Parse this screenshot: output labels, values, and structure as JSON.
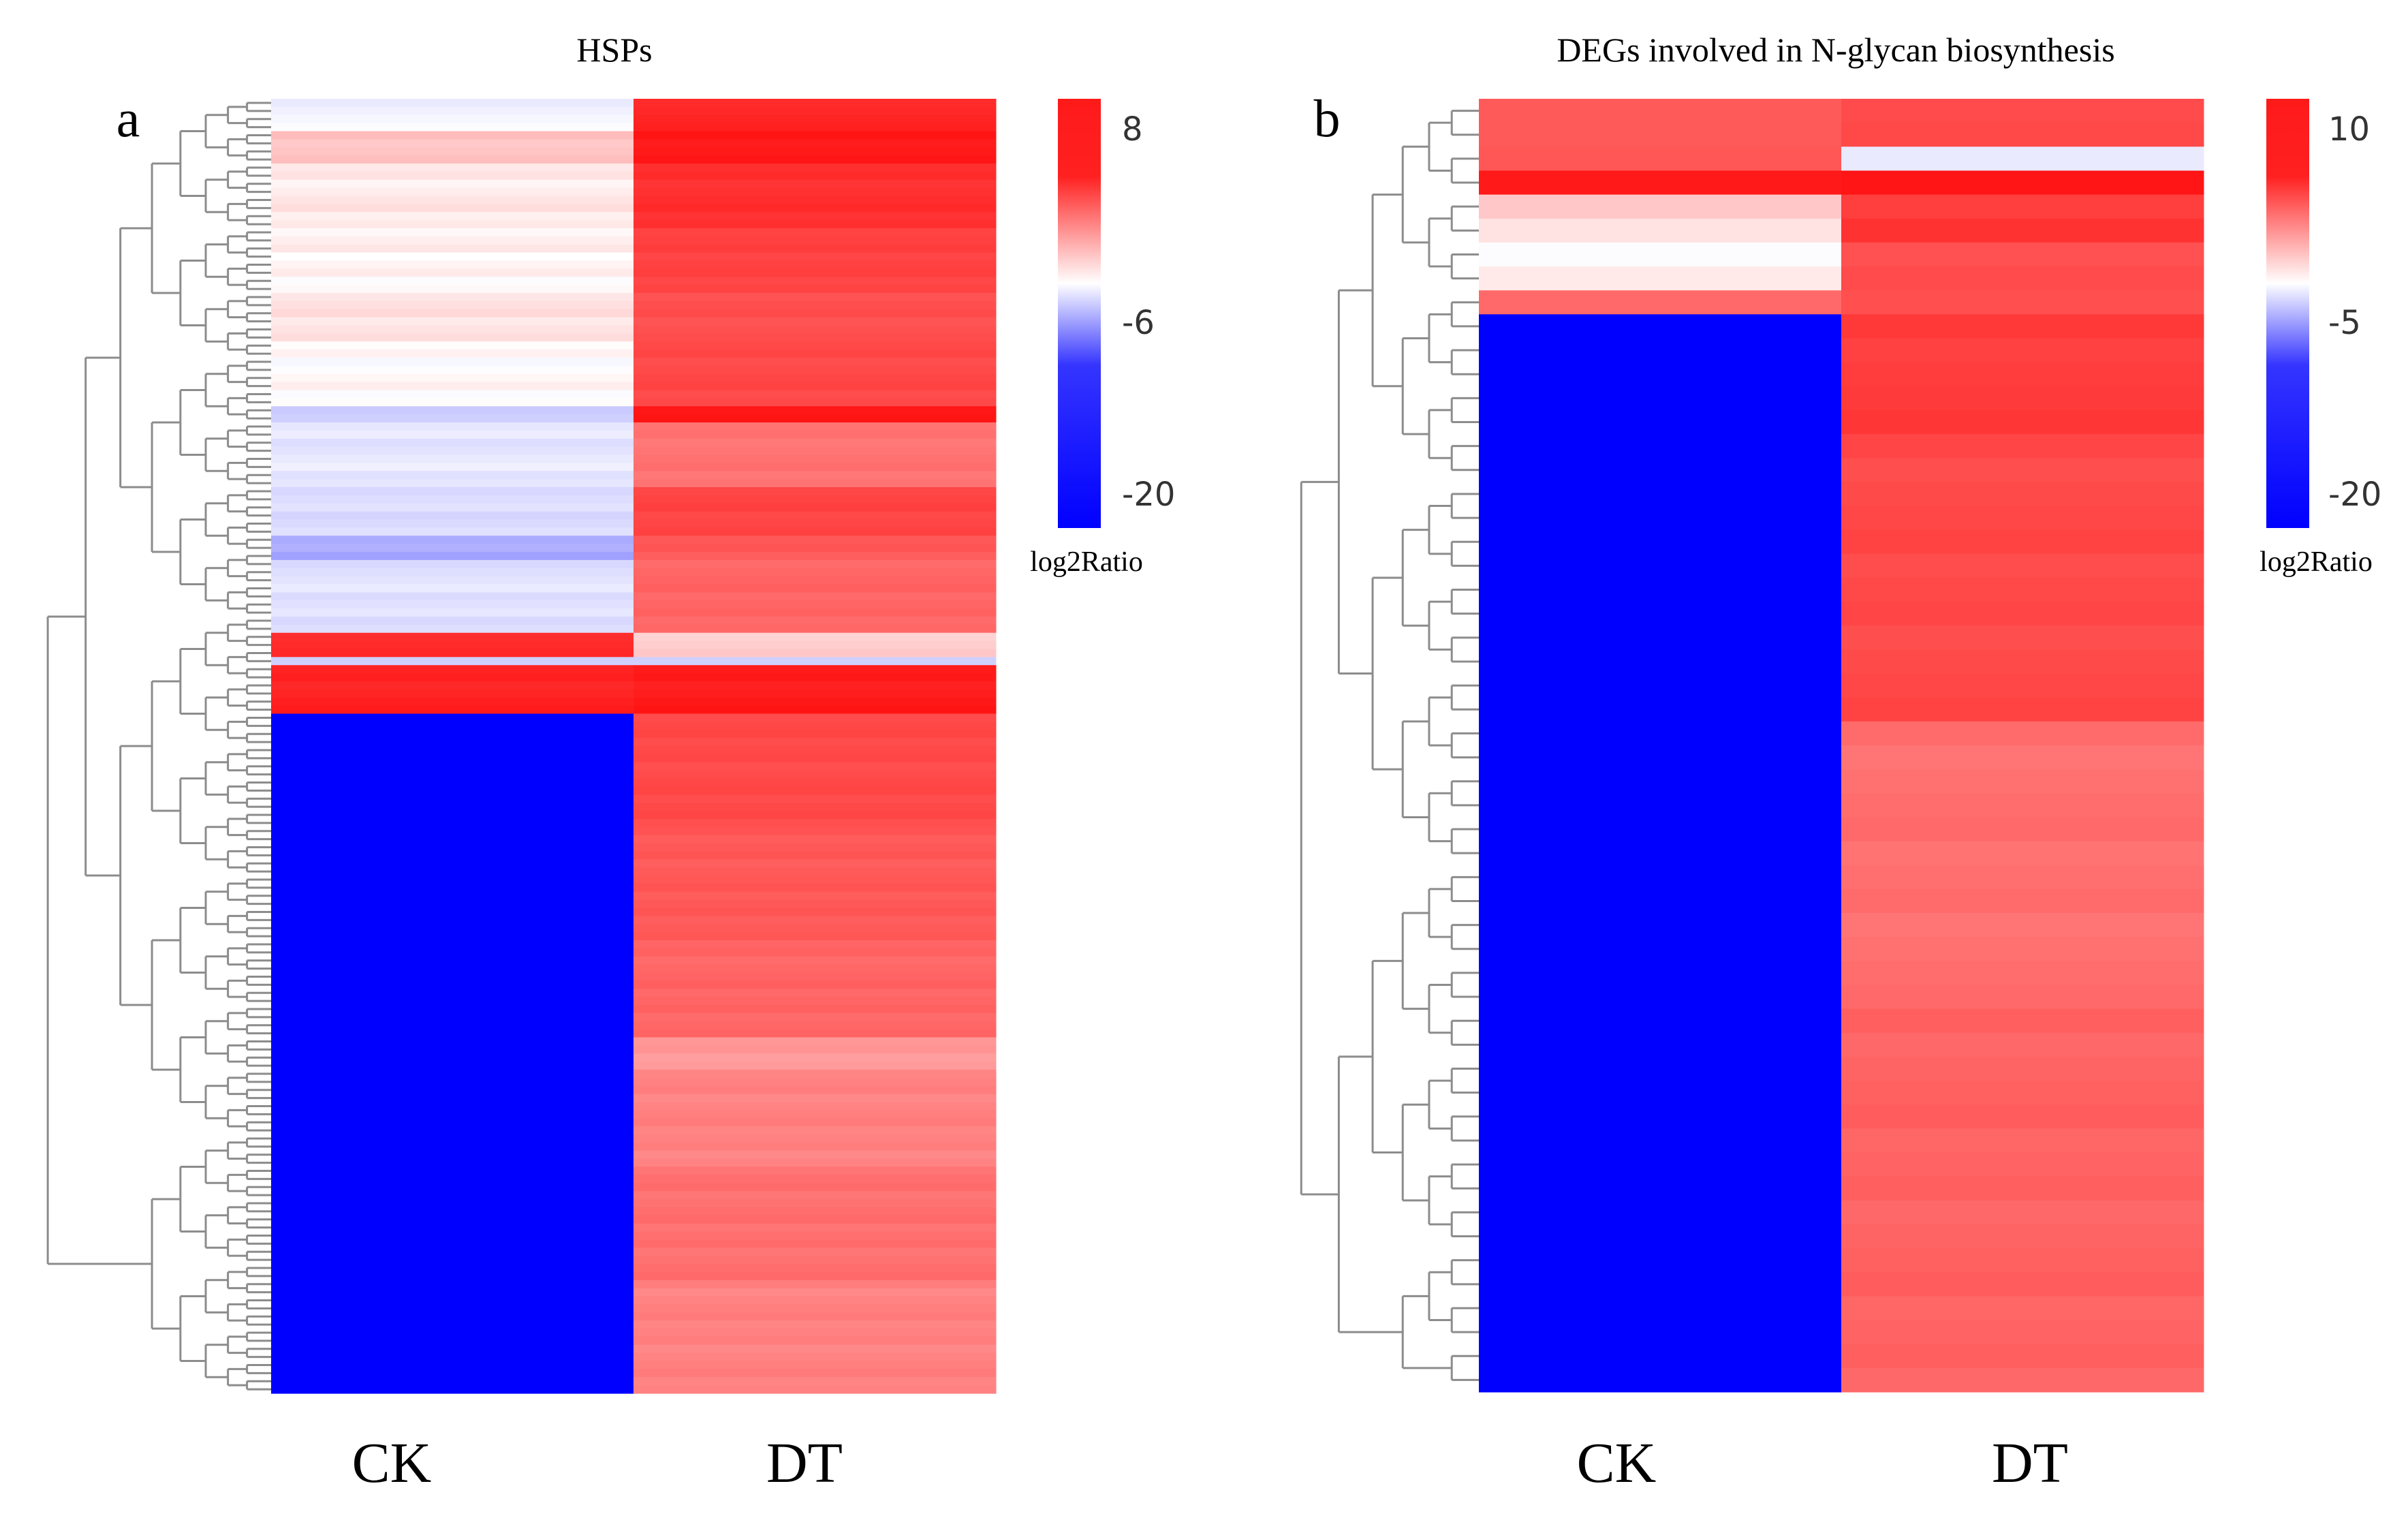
{
  "chart_data": [
    {
      "type": "heatmap",
      "panel_letter": "a",
      "title": "HSPs",
      "columns": [
        "CK",
        "DT"
      ],
      "colorbar": {
        "title": "log2Ratio",
        "ticks": [
          8,
          -6,
          -20
        ],
        "range": [
          -20,
          8
        ]
      },
      "row_blocks": [
        {
          "rows": 4,
          "ck": -4.5,
          "dt": 6.8
        },
        {
          "rows": 4,
          "ck": -2.0,
          "dt": 7.8
        },
        {
          "rows": 8,
          "ck": -3.5,
          "dt": 6.2
        },
        {
          "rows": 8,
          "ck": -3.8,
          "dt": 5.0
        },
        {
          "rows": 6,
          "ck": -3.2,
          "dt": 4.2
        },
        {
          "rows": 8,
          "ck": -4.0,
          "dt": 4.6
        },
        {
          "rows": 2,
          "ck": -6.0,
          "dt": 8.0
        },
        {
          "rows": 8,
          "ck": -5.0,
          "dt": 2.0
        },
        {
          "rows": 6,
          "ck": -5.5,
          "dt": 4.8
        },
        {
          "rows": 3,
          "ck": -7.5,
          "dt": 3.5
        },
        {
          "rows": 9,
          "ck": -5.2,
          "dt": 2.8
        },
        {
          "rows": 3,
          "ck": 6.5,
          "dt": -2.5
        },
        {
          "rows": 1,
          "ck": -6.0,
          "dt": -6.0
        },
        {
          "rows": 4,
          "ck": 7.0,
          "dt": 7.5
        },
        {
          "rows": 2,
          "ck": 7.5,
          "dt": 8.0
        },
        {
          "rows": 14,
          "ck": -20,
          "dt": 4.5
        },
        {
          "rows": 14,
          "ck": -20,
          "dt": 3.6
        },
        {
          "rows": 12,
          "ck": -20,
          "dt": 2.8
        },
        {
          "rows": 4,
          "ck": -20,
          "dt": 0.0
        },
        {
          "rows": 12,
          "ck": -20,
          "dt": 1.2
        },
        {
          "rows": 14,
          "ck": -20,
          "dt": 2.2
        },
        {
          "rows": 14,
          "ck": -20,
          "dt": 1.2
        }
      ]
    },
    {
      "type": "heatmap",
      "panel_letter": "b",
      "title": "DEGs involved in N-glycan biosynthesis",
      "columns": [
        "CK",
        "DT"
      ],
      "colorbar": {
        "title": "log2Ratio",
        "ticks": [
          10,
          -5,
          -20
        ],
        "range": [
          -20,
          10
        ]
      },
      "row_blocks": [
        {
          "rows": 1,
          "ck": 5.5,
          "dt": 6.5
        },
        {
          "rows": 1,
          "ck": 4.8,
          "dt": 6.0
        },
        {
          "rows": 1,
          "ck": 5.2,
          "dt": -4.0
        },
        {
          "rows": 1,
          "ck": 9.5,
          "dt": 9.8
        },
        {
          "rows": 1,
          "ck": -1.0,
          "dt": 7.0
        },
        {
          "rows": 1,
          "ck": -2.0,
          "dt": 8.0
        },
        {
          "rows": 1,
          "ck": -2.8,
          "dt": 6.0
        },
        {
          "rows": 1,
          "ck": -2.0,
          "dt": 6.5
        },
        {
          "rows": 1,
          "ck": 3.8,
          "dt": 5.5
        },
        {
          "rows": 5,
          "ck": -20,
          "dt": 7.2
        },
        {
          "rows": 12,
          "ck": -20,
          "dt": 6.3
        },
        {
          "rows": 12,
          "ck": -20,
          "dt": 3.8
        },
        {
          "rows": 16,
          "ck": -20,
          "dt": 4.6
        }
      ]
    }
  ]
}
